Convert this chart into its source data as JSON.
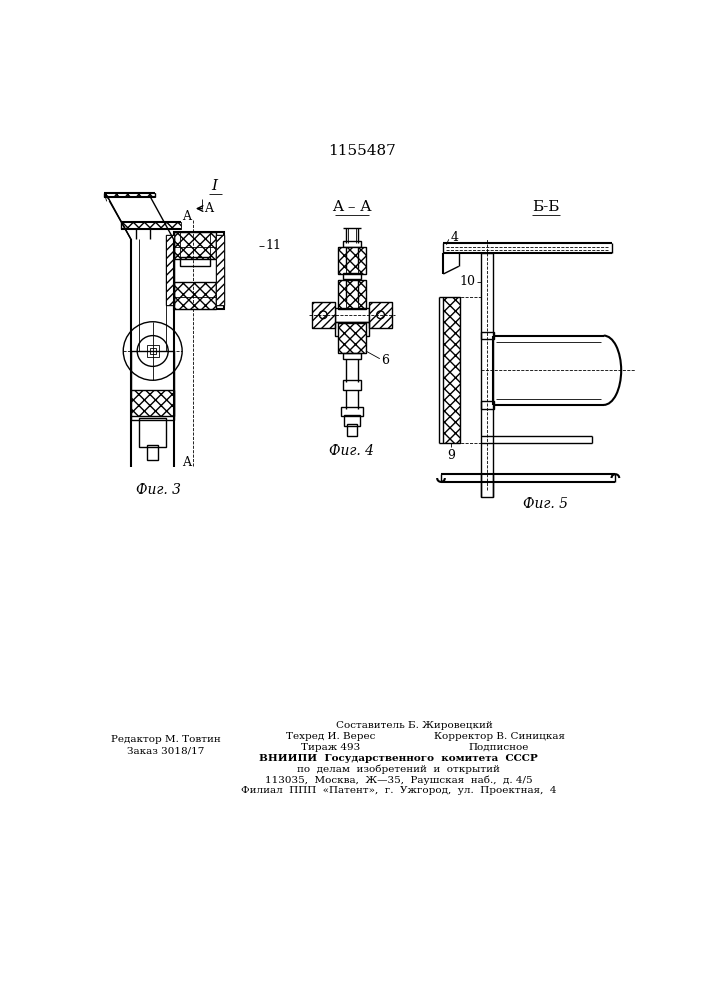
{
  "patent_number": "1155487",
  "background_color": "#ffffff",
  "line_color": "#000000",
  "fig_width": 7.07,
  "fig_height": 10.0,
  "dpi": 100,
  "footer_text": [
    "Составитель Б. Жировецкий",
    "Техред И. Верес         Корректор В. Синицкая",
    "Тираж 493                        Подписное",
    "ВНИИПИ  Государственного  комитета  СССР",
    "по  делам  изобретений  и  открытий",
    "113035,  Москва,  Ж—35,  Раушская  наб.,  д. 4/5",
    "Филиал  ППП  «Патент»,  г.  Ужгород,  ул.  Проектная,  4"
  ],
  "left_footer": [
    "Редактор М. Товтин",
    "Заказ 3018/17"
  ],
  "fig3_label": "Фиг. 3",
  "fig4_label": "Фиг. 4",
  "fig5_label": "Фиг. 5",
  "view_aa_label": "A – A",
  "view_bb_label": "Б-Б",
  "section_I": "I",
  "arrow_A_label": "A"
}
